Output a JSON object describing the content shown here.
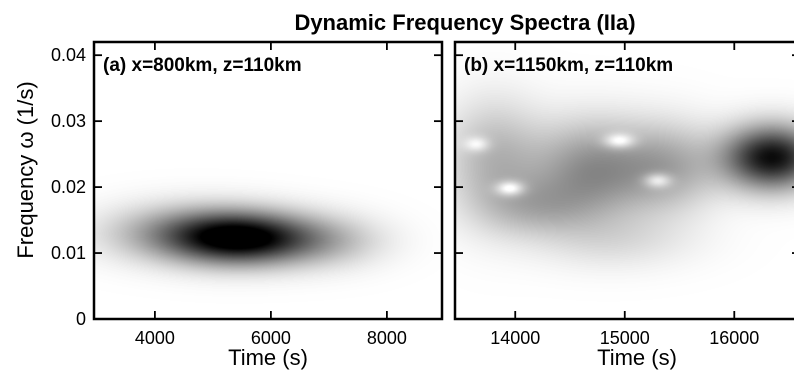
{
  "chart_data": {
    "type": "heatmap",
    "title": "Dynamic Frequency Spectra (IIa)",
    "ylabel": "Frequency ω (1/s)",
    "ylim": [
      0,
      0.042
    ],
    "yticks": [
      0,
      0.01,
      0.02,
      0.03,
      0.04
    ],
    "ytick_labels": [
      "0",
      "0.01",
      "0.02",
      "0.03",
      "0.04"
    ],
    "colormap": "white-to-black (darker = higher spectral power)",
    "panels": [
      {
        "label": "(a) x=800km, z=110km",
        "xlabel": "Time (s)",
        "xlim": [
          2950,
          8950
        ],
        "xticks": [
          4000,
          6000,
          8000
        ],
        "xtick_labels": [
          "4000",
          "6000",
          "8000"
        ],
        "blobs": [
          {
            "t": 5500,
            "f": 0.0122,
            "sigma_t": 800,
            "sigma_f": 0.0026,
            "intensity": 1.0
          },
          {
            "t": 4500,
            "f": 0.013,
            "sigma_t": 900,
            "sigma_f": 0.0028,
            "intensity": 0.35
          },
          {
            "t": 6900,
            "f": 0.0118,
            "sigma_t": 700,
            "sigma_f": 0.0026,
            "intensity": 0.22
          }
        ]
      },
      {
        "label": "(b) x=1150km, z=110km",
        "xlabel": "Time (s)",
        "xlim": [
          13450,
          16600
        ],
        "xticks": [
          14000,
          15000,
          16000
        ],
        "xtick_labels": [
          "14000",
          "15000",
          "16000"
        ],
        "blobs": [
          {
            "t": 16350,
            "f": 0.0245,
            "sigma_t": 300,
            "sigma_f": 0.0032,
            "intensity": 0.95
          },
          {
            "t": 14700,
            "f": 0.0225,
            "sigma_t": 380,
            "sigma_f": 0.005,
            "intensity": 0.4
          },
          {
            "t": 13800,
            "f": 0.024,
            "sigma_t": 300,
            "sigma_f": 0.006,
            "intensity": 0.25
          },
          {
            "t": 15400,
            "f": 0.023,
            "sigma_t": 320,
            "sigma_f": 0.0045,
            "intensity": 0.28
          },
          {
            "t": 14200,
            "f": 0.017,
            "sigma_t": 350,
            "sigma_f": 0.003,
            "intensity": 0.2
          },
          {
            "t": 14900,
            "f": 0.012,
            "sigma_t": 500,
            "sigma_f": 0.003,
            "intensity": 0.1
          }
        ],
        "holes": [
          {
            "t": 13950,
            "f": 0.0198,
            "sigma_t": 90,
            "sigma_f": 0.0008,
            "depth": 0.35
          },
          {
            "t": 14950,
            "f": 0.027,
            "sigma_t": 100,
            "sigma_f": 0.0008,
            "depth": 0.3
          },
          {
            "t": 15300,
            "f": 0.021,
            "sigma_t": 90,
            "sigma_f": 0.0008,
            "depth": 0.3
          },
          {
            "t": 13650,
            "f": 0.0265,
            "sigma_t": 80,
            "sigma_f": 0.0008,
            "depth": 0.2
          }
        ]
      }
    ]
  }
}
